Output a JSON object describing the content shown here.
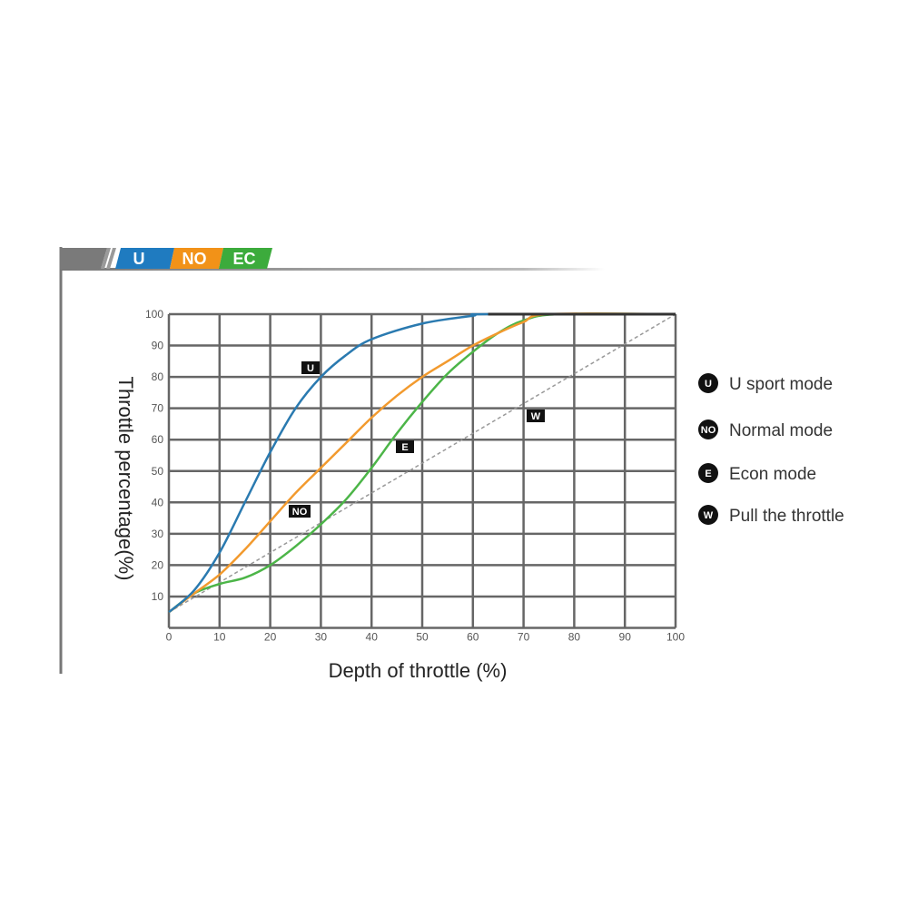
{
  "banner": {
    "tabs": [
      {
        "label": "U",
        "color": "#1f7bc0"
      },
      {
        "label": "NO",
        "color": "#f29218"
      },
      {
        "label": "EC",
        "color": "#3cab3c"
      }
    ]
  },
  "chart_data": {
    "type": "line",
    "xlabel": "Depth of throttle (%)",
    "ylabel": "Throttle percentage(%)",
    "xlim": [
      0,
      100
    ],
    "ylim": [
      0,
      100
    ],
    "x_ticks": [
      0,
      10,
      20,
      30,
      40,
      50,
      60,
      70,
      80,
      90,
      100
    ],
    "y_ticks": [
      10,
      20,
      30,
      40,
      50,
      60,
      70,
      80,
      90,
      100
    ],
    "grid": true,
    "legend_position": "right",
    "series": [
      {
        "name": "U sport mode",
        "tag": "U",
        "color": "#2a7ab0",
        "x": [
          0,
          5,
          10,
          15,
          20,
          25,
          30,
          35,
          40,
          50,
          60,
          63,
          100
        ],
        "y": [
          5,
          12,
          24,
          40,
          56,
          70,
          80,
          87,
          92,
          97,
          99.5,
          100,
          100
        ]
      },
      {
        "name": "Normal mode",
        "tag": "NO",
        "color": "#f29a2e",
        "x": [
          0,
          5,
          10,
          15,
          20,
          25,
          30,
          35,
          40,
          45,
          50,
          55,
          60,
          65,
          70,
          75,
          100
        ],
        "y": [
          5,
          11,
          17,
          25,
          34,
          43,
          51,
          59,
          67,
          74,
          80,
          85,
          90,
          94,
          97.5,
          100,
          100
        ]
      },
      {
        "name": "Econ mode",
        "tag": "E",
        "color": "#4cb548",
        "x": [
          0,
          5,
          10,
          15,
          20,
          25,
          30,
          35,
          40,
          45,
          50,
          55,
          60,
          65,
          70,
          77,
          100
        ],
        "y": [
          5,
          11,
          14,
          16,
          20,
          26,
          33,
          41,
          51,
          62,
          72,
          81,
          88,
          94,
          98,
          100,
          100
        ]
      },
      {
        "name": "Pull the throttle",
        "tag": "W",
        "color": "#999999",
        "dashed": true,
        "x": [
          0,
          100
        ],
        "y": [
          5,
          100
        ]
      }
    ]
  }
}
